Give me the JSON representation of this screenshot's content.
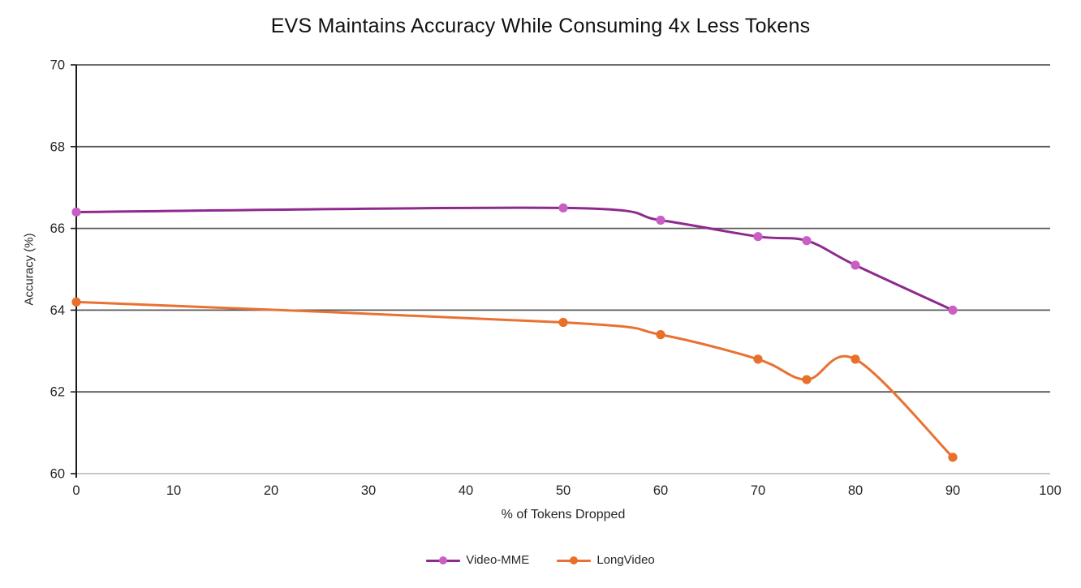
{
  "chart_data": {
    "type": "line",
    "title": "EVS Maintains Accuracy While Consuming 4x Less Tokens",
    "xlabel": "% of Tokens Dropped",
    "ylabel": "Accuracy (%)",
    "xlim": [
      0,
      100
    ],
    "ylim": [
      60,
      70
    ],
    "xticks": [
      0,
      10,
      20,
      30,
      40,
      50,
      60,
      70,
      80,
      90,
      100
    ],
    "yticks": [
      60,
      62,
      64,
      66,
      68,
      70
    ],
    "x": [
      0,
      50,
      60,
      70,
      75,
      80,
      90
    ],
    "series": [
      {
        "name": "Video-MME",
        "line_color": "#8E2A8E",
        "marker_color": "#C95FC5",
        "values": [
          66.4,
          66.5,
          66.2,
          65.8,
          65.7,
          65.1,
          64.0
        ]
      },
      {
        "name": "LongVideo",
        "line_color": "#E97132",
        "marker_color": "#E8702A",
        "values": [
          64.2,
          63.7,
          63.4,
          62.8,
          62.3,
          62.8,
          60.4
        ]
      }
    ],
    "grid": "horizontal",
    "legend_position": "bottom",
    "smoothed_lines": true,
    "colors": {
      "gridline": "#595959",
      "y_axis_line": "#1a1a1a",
      "x_axis_line": "#BFBFBF",
      "tick_label": "#262626",
      "title_text": "#111111"
    }
  }
}
